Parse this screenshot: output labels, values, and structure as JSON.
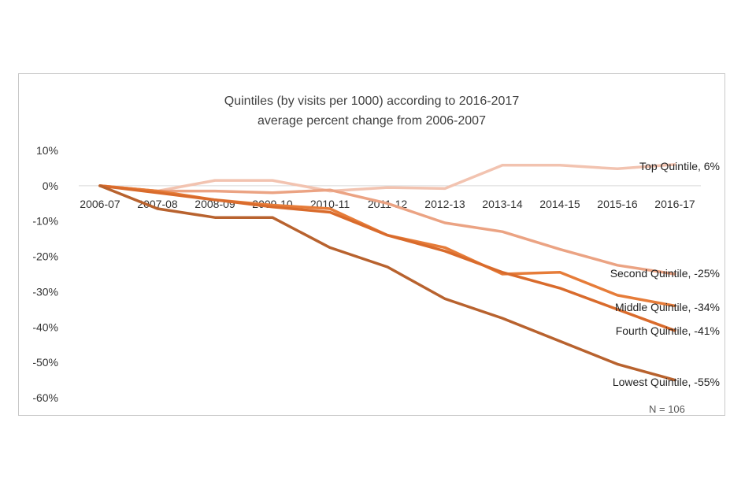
{
  "chart_data": {
    "type": "line",
    "title": "Quintiles (by visits per 1000) according to 2016-2017",
    "subtitle": "average percent change from 2006-2007",
    "xlabel": "",
    "ylabel": "",
    "categories": [
      "2006-07",
      "2007-08",
      "2008-09",
      "2009-10",
      "2010-11",
      "2011-12",
      "2012-13",
      "2013-14",
      "2014-15",
      "2015-16",
      "2016-17"
    ],
    "ylim": [
      -60,
      10
    ],
    "yticks": [
      10,
      0,
      -10,
      -20,
      -30,
      -40,
      -50,
      -60
    ],
    "ytick_labels": [
      "10%",
      "0%",
      "-10%",
      "-20%",
      "-30%",
      "-40%",
      "-50%",
      "-60%"
    ],
    "grid": false,
    "series": [
      {
        "name": "Top Quintile",
        "label": "Top Quintile, 6%",
        "color": "#f2c3b0",
        "values": [
          0,
          -1.5,
          1.5,
          1.5,
          -1.5,
          -0.5,
          -0.8,
          5.8,
          5.8,
          4.8,
          6
        ]
      },
      {
        "name": "Second Quintile",
        "label": "Second Quintile, -25%",
        "color": "#eba383",
        "values": [
          0,
          -1.5,
          -1.5,
          -2,
          -1.2,
          -5,
          -10.5,
          -13,
          -18,
          -22.5,
          -25
        ]
      },
      {
        "name": "Middle Quintile",
        "label": "Middle Quintile, -34%",
        "color": "#e67c39",
        "values": [
          0,
          -1.5,
          -4,
          -5.5,
          -6.5,
          -14,
          -17.5,
          -25,
          -24.5,
          -31,
          -34
        ]
      },
      {
        "name": "Fourth Quintile",
        "label": "Fourth Quintile, -41%",
        "color": "#d96b2c",
        "values": [
          0,
          -2,
          -4,
          -6,
          -7.5,
          -14,
          -18.5,
          -24.5,
          -29,
          -35,
          -41
        ]
      },
      {
        "name": "Lowest Quintile",
        "label": "Lowest Quintile, -55%",
        "color": "#b8622e",
        "values": [
          0,
          -6.5,
          -9,
          -9,
          -17.5,
          -23,
          -32,
          -37.5,
          -44,
          -50.5,
          -55
        ]
      }
    ],
    "annotations": [
      "N = 106"
    ]
  }
}
